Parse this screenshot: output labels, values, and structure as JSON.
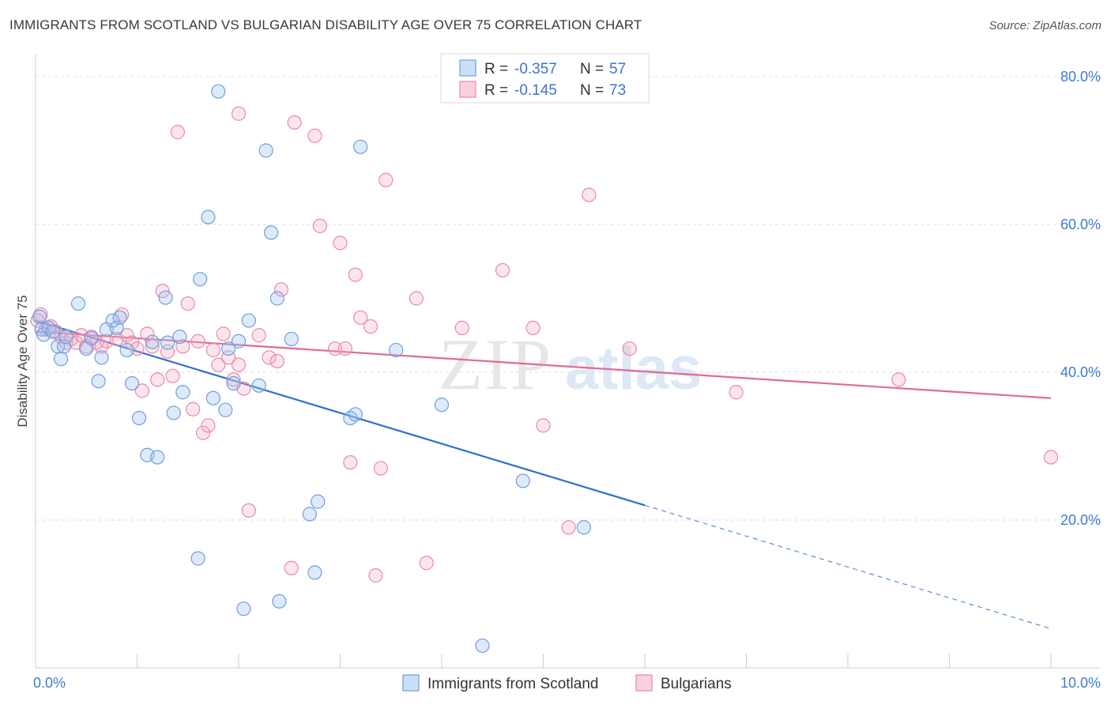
{
  "header": {
    "title": "IMMIGRANTS FROM SCOTLAND VS BULGARIAN DISABILITY AGE OVER 75 CORRELATION CHART",
    "source": "Source: ZipAtlas.com"
  },
  "watermark": {
    "part1": "ZIP",
    "part2": "atlas"
  },
  "legend": {
    "r_label": "R =",
    "n_label": "N =",
    "items": [
      {
        "name": "Immigrants from Scotland",
        "r": "-0.357",
        "n": "57",
        "color": "#6f9fdc"
      },
      {
        "name": "Bulgarians",
        "r": "-0.145",
        "n": "73",
        "color": "#e88aab"
      }
    ]
  },
  "chart_data": {
    "type": "scatter",
    "title": "IMMIGRANTS FROM SCOTLAND VS BULGARIAN DISABILITY AGE OVER 75 CORRELATION CHART",
    "xlabel": "",
    "ylabel": "Disability Age Over 75",
    "xlim": [
      0,
      10
    ],
    "ylim": [
      0,
      80
    ],
    "x_tick_labels": [
      "0.0%",
      "10.0%"
    ],
    "y_ticks": [
      20,
      40,
      60,
      80
    ],
    "y_tick_labels": [
      "20.0%",
      "40.0%",
      "60.0%",
      "80.0%"
    ],
    "grid": true,
    "legend_position": "top-center",
    "series": [
      {
        "name": "Immigrants from Scotland",
        "color": "#6f9fdc",
        "points": [
          [
            0.06,
            45.8
          ],
          [
            0.08,
            45.1
          ],
          [
            0.13,
            46.0
          ],
          [
            0.17,
            45.5
          ],
          [
            0.22,
            43.5
          ],
          [
            0.25,
            41.8
          ],
          [
            0.28,
            43.5
          ],
          [
            0.42,
            49.3
          ],
          [
            0.5,
            43.2
          ],
          [
            0.55,
            44.6
          ],
          [
            0.62,
            38.8
          ],
          [
            0.65,
            42.0
          ],
          [
            0.7,
            45.8
          ],
          [
            0.76,
            47.0
          ],
          [
            0.8,
            46.0
          ],
          [
            0.83,
            47.4
          ],
          [
            0.9,
            43.0
          ],
          [
            0.95,
            38.5
          ],
          [
            1.02,
            33.8
          ],
          [
            1.1,
            28.8
          ],
          [
            1.15,
            44.1
          ],
          [
            1.2,
            28.5
          ],
          [
            1.28,
            50.1
          ],
          [
            1.3,
            44.0
          ],
          [
            1.36,
            34.5
          ],
          [
            1.42,
            44.8
          ],
          [
            1.45,
            37.3
          ],
          [
            1.6,
            14.8
          ],
          [
            1.62,
            52.6
          ],
          [
            1.7,
            61.0
          ],
          [
            1.75,
            36.5
          ],
          [
            1.8,
            78.0
          ],
          [
            1.87,
            34.9
          ],
          [
            1.9,
            43.2
          ],
          [
            1.95,
            38.5
          ],
          [
            2.0,
            44.2
          ],
          [
            2.05,
            8.0
          ],
          [
            2.1,
            47.0
          ],
          [
            2.2,
            38.2
          ],
          [
            2.27,
            70.0
          ],
          [
            2.32,
            58.9
          ],
          [
            2.38,
            50.0
          ],
          [
            2.4,
            9.0
          ],
          [
            2.52,
            44.5
          ],
          [
            2.7,
            20.8
          ],
          [
            2.75,
            12.9
          ],
          [
            2.78,
            22.5
          ],
          [
            3.1,
            33.8
          ],
          [
            3.15,
            34.3
          ],
          [
            3.2,
            70.5
          ],
          [
            3.55,
            43.0
          ],
          [
            4.0,
            35.6
          ],
          [
            4.4,
            3.0
          ],
          [
            4.8,
            25.3
          ],
          [
            5.4,
            19.0
          ],
          [
            0.04,
            47.5
          ],
          [
            0.3,
            44.8
          ]
        ]
      },
      {
        "name": "Bulgarians",
        "color": "#e88aab",
        "points": [
          [
            0.05,
            47.8
          ],
          [
            0.1,
            45.8
          ],
          [
            0.15,
            46.2
          ],
          [
            0.2,
            45.5
          ],
          [
            0.25,
            44.8
          ],
          [
            0.3,
            44.0
          ],
          [
            0.35,
            44.5
          ],
          [
            0.4,
            44.0
          ],
          [
            0.45,
            45.0
          ],
          [
            0.5,
            43.5
          ],
          [
            0.55,
            44.8
          ],
          [
            0.6,
            44.0
          ],
          [
            0.65,
            43.5
          ],
          [
            0.7,
            44.2
          ],
          [
            0.8,
            44.5
          ],
          [
            0.85,
            47.8
          ],
          [
            0.9,
            45.0
          ],
          [
            0.95,
            44.0
          ],
          [
            1.0,
            43.2
          ],
          [
            1.05,
            37.5
          ],
          [
            1.1,
            45.2
          ],
          [
            1.15,
            43.5
          ],
          [
            1.2,
            39.0
          ],
          [
            1.25,
            51.0
          ],
          [
            1.3,
            42.8
          ],
          [
            1.35,
            39.5
          ],
          [
            1.4,
            72.5
          ],
          [
            1.45,
            43.5
          ],
          [
            1.5,
            49.3
          ],
          [
            1.55,
            35.0
          ],
          [
            1.6,
            44.2
          ],
          [
            1.65,
            31.8
          ],
          [
            1.7,
            32.8
          ],
          [
            1.75,
            43.0
          ],
          [
            1.8,
            41.0
          ],
          [
            1.85,
            45.2
          ],
          [
            1.9,
            42.0
          ],
          [
            1.95,
            39.0
          ],
          [
            2.0,
            41.0
          ],
          [
            2.0,
            75.0
          ],
          [
            2.05,
            37.8
          ],
          [
            2.1,
            21.3
          ],
          [
            2.2,
            45.0
          ],
          [
            2.3,
            42.0
          ],
          [
            2.38,
            41.5
          ],
          [
            2.42,
            51.2
          ],
          [
            2.52,
            13.5
          ],
          [
            2.55,
            73.8
          ],
          [
            2.75,
            72.0
          ],
          [
            2.8,
            59.8
          ],
          [
            2.95,
            43.2
          ],
          [
            3.0,
            57.5
          ],
          [
            3.05,
            43.2
          ],
          [
            3.1,
            27.8
          ],
          [
            3.15,
            53.2
          ],
          [
            3.2,
            47.4
          ],
          [
            3.3,
            46.2
          ],
          [
            3.35,
            12.5
          ],
          [
            3.4,
            27.0
          ],
          [
            3.45,
            66.0
          ],
          [
            3.75,
            50.0
          ],
          [
            3.85,
            14.2
          ],
          [
            4.2,
            46.0
          ],
          [
            4.6,
            53.8
          ],
          [
            4.9,
            46.0
          ],
          [
            5.0,
            32.8
          ],
          [
            5.25,
            19.0
          ],
          [
            5.45,
            64.0
          ],
          [
            5.85,
            43.2
          ],
          [
            6.9,
            37.3
          ],
          [
            8.5,
            39.0
          ],
          [
            10.0,
            28.5
          ],
          [
            0.02,
            47.0
          ]
        ]
      }
    ],
    "trend_lines": [
      {
        "series": "Immigrants from Scotland",
        "x_start": 0,
        "y_start": 47.0,
        "x_solid_end": 6.0,
        "y_solid_end": 22.0,
        "x_dash_end": 10.0,
        "y_dash_end": 5.3
      },
      {
        "series": "Bulgarians",
        "x_start": 0,
        "y_start": 45.5,
        "x_end": 10.0,
        "y_end": 36.5
      }
    ]
  }
}
